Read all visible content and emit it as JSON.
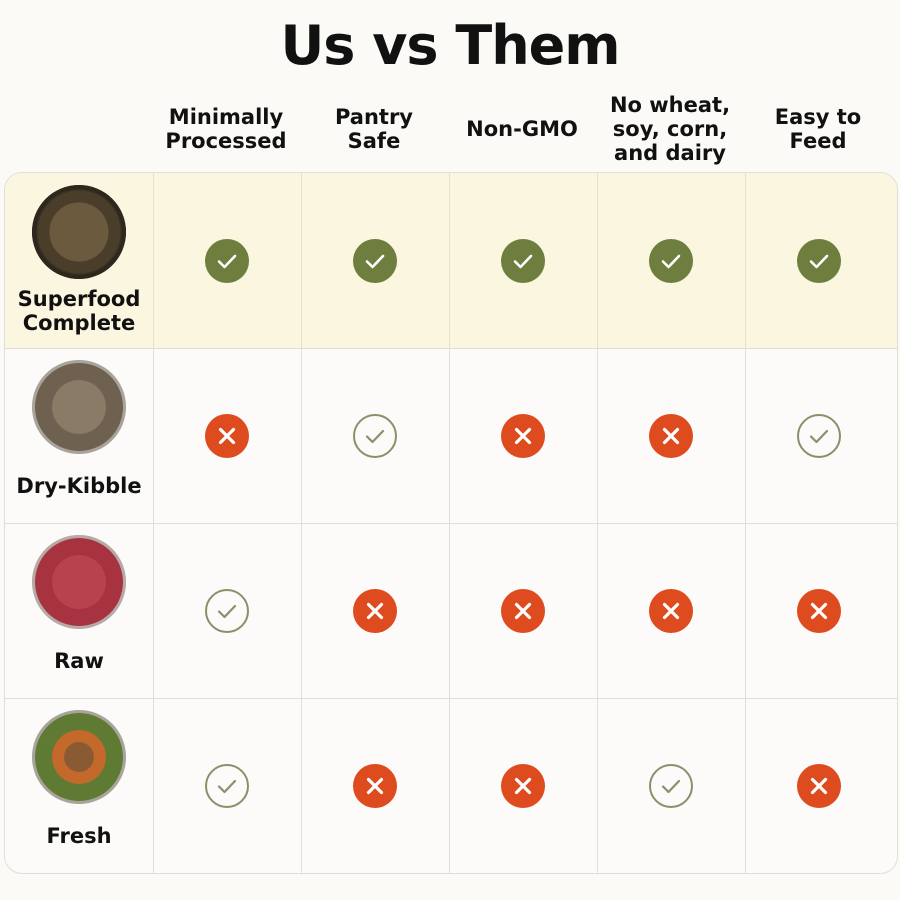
{
  "title": "Us vs Them",
  "columns": [
    "Minimally\nProcessed",
    "Pantry\nSafe",
    "Non-GMO",
    "No wheat,\nsoy, corn,\nand dairy",
    "Easy to\nFeed"
  ],
  "colors": {
    "check_filled": "#6e7e3f",
    "cross": "#dd4b1f",
    "check_outline": "#8b8f6a",
    "highlight_row": "#fbf6df"
  },
  "rows": [
    {
      "label": "Superfood\nComplete",
      "image": "dark-food-bowl",
      "marks": [
        "check-filled",
        "check-filled",
        "check-filled",
        "check-filled",
        "check-filled"
      ]
    },
    {
      "label": "Dry-Kibble",
      "image": "kibble-bowl",
      "marks": [
        "cross",
        "check-outline",
        "cross",
        "cross",
        "check-outline"
      ]
    },
    {
      "label": "Raw",
      "image": "raw-meat-bowl",
      "marks": [
        "check-outline",
        "cross",
        "cross",
        "cross",
        "cross"
      ]
    },
    {
      "label": "Fresh",
      "image": "fresh-food-bowl",
      "marks": [
        "check-outline",
        "cross",
        "cross",
        "check-outline",
        "cross"
      ]
    }
  ]
}
